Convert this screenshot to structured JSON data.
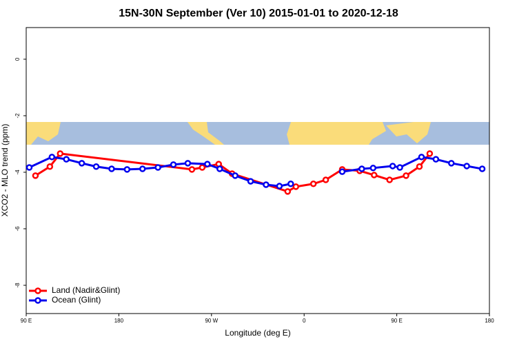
{
  "chart_data": {
    "type": "line",
    "title": "15N-30N September (Ver 10)   2015-01-01 to 2020-12-18",
    "x_label": "Longitude (deg E)",
    "y_label": "XCO2 - MLO trend (ppm)",
    "xlim": [
      90,
      540
    ],
    "ylim": [
      -9,
      1.12
    ],
    "xticks": [
      {
        "value": 90,
        "label": "90 E"
      },
      {
        "value": 180,
        "label": "180"
      },
      {
        "value": 270,
        "label": "90 W"
      },
      {
        "value": 360,
        "label": "0"
      },
      {
        "value": 450,
        "label": "90 E"
      },
      {
        "value": 540,
        "label": "180"
      }
    ],
    "yticks": [
      0,
      -2,
      -4,
      -6,
      -8
    ],
    "legend": "bottom-left",
    "series": [
      {
        "name": "Land (Nadir&Glint)",
        "color": "#ff0000",
        "x": [
          99,
          113,
          123,
          251,
          261,
          277,
          290,
          344,
          352,
          369,
          381,
          397,
          414,
          428,
          443,
          459,
          472,
          482
        ],
        "values": [
          -4.12,
          -3.8,
          -3.34,
          -3.9,
          -3.83,
          -3.71,
          -4.05,
          -4.68,
          -4.51,
          -4.41,
          -4.27,
          -3.9,
          -3.95,
          -4.1,
          -4.27,
          -4.12,
          -3.8,
          -3.34
        ]
      },
      {
        "name": "Ocean (Glint)",
        "color": "#0000ee",
        "x": [
          93,
          115,
          129,
          144,
          158,
          173,
          188,
          203,
          218,
          233,
          247,
          266,
          278,
          293,
          308,
          323,
          336,
          347,
          372,
          397,
          416,
          427,
          446,
          453,
          474,
          488,
          503,
          518,
          533
        ],
        "values": [
          -3.83,
          -3.46,
          -3.54,
          -3.68,
          -3.8,
          -3.88,
          -3.9,
          -3.88,
          -3.83,
          -3.73,
          -3.68,
          -3.71,
          -3.88,
          -4.12,
          -4.32,
          -4.44,
          -4.49,
          -4.41,
          null,
          -3.98,
          -3.88,
          -3.85,
          -3.78,
          -3.83,
          -3.46,
          -3.54,
          -3.68,
          -3.78,
          -3.88
        ]
      }
    ]
  }
}
